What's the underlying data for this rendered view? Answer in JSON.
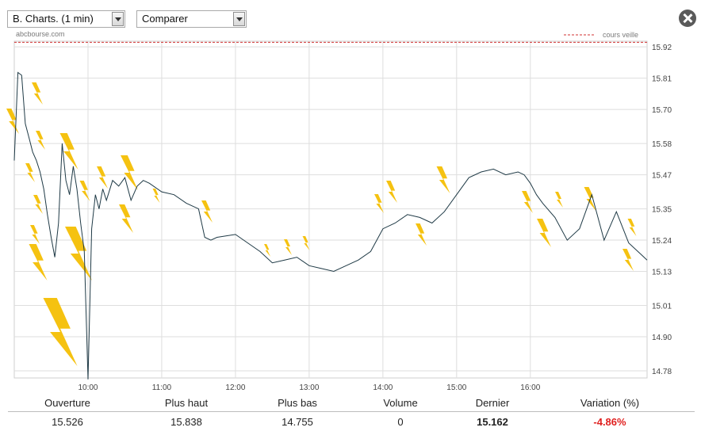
{
  "controls": {
    "period_value": "B. Charts. (1 min)",
    "compare_value": "Comparer"
  },
  "source_label": "abcbourse.com",
  "colors": {
    "price_line": "#1f3a46",
    "ref_line": "#d03030",
    "grid": "#dedede",
    "lightning": "#f5c211",
    "negative": "#e0201f"
  },
  "stats": {
    "headers": [
      "Ouverture",
      "Plus haut",
      "Plus bas",
      "Volume",
      "Dernier",
      "Variation (%)"
    ],
    "values": [
      "15.526",
      "15.838",
      "14.755",
      "0",
      "15.162",
      "-4.86%"
    ]
  },
  "chart_data": {
    "type": "line",
    "x_ticks": [
      "10:00",
      "11:00",
      "12:00",
      "13:00",
      "14:00",
      "15:00",
      "16:00"
    ],
    "y_ticks": [
      15.92,
      15.81,
      15.7,
      15.58,
      15.47,
      15.35,
      15.24,
      15.13,
      15.01,
      14.9,
      14.78
    ],
    "ylim": [
      14.755,
      15.94
    ],
    "xlim": [
      "09:00",
      "17:35"
    ],
    "grid": true,
    "reference_line": {
      "label": "cours veille",
      "value": 15.936
    },
    "series": [
      {
        "x": [
          "09:00",
          "09:03",
          "09:06",
          "09:09",
          "09:12",
          "09:15",
          "09:18",
          "09:21",
          "09:24",
          "09:27",
          "09:30",
          "09:33",
          "09:36",
          "09:39",
          "09:42",
          "09:45",
          "09:48",
          "09:51",
          "09:54",
          "09:57",
          "10:00",
          "10:03",
          "10:06",
          "10:09",
          "10:12",
          "10:15",
          "10:20",
          "10:25",
          "10:30",
          "10:35",
          "10:40",
          "10:45",
          "10:50",
          "11:00",
          "11:10",
          "11:20",
          "11:30",
          "11:35",
          "11:40",
          "11:45",
          "12:00",
          "12:10",
          "12:20",
          "12:30",
          "12:40",
          "12:50",
          "13:00",
          "13:10",
          "13:20",
          "13:30",
          "13:40",
          "13:50",
          "14:00",
          "14:10",
          "14:20",
          "14:30",
          "14:40",
          "14:50",
          "15:00",
          "15:10",
          "15:20",
          "15:30",
          "15:40",
          "15:50",
          "15:55",
          "16:00",
          "16:05",
          "16:10",
          "16:20",
          "16:30",
          "16:40",
          "16:50",
          "17:00",
          "17:10",
          "17:20",
          "17:30",
          "17:35"
        ],
        "values": [
          15.52,
          15.83,
          15.82,
          15.65,
          15.6,
          15.55,
          15.52,
          15.48,
          15.42,
          15.33,
          15.25,
          15.18,
          15.3,
          15.58,
          15.45,
          15.4,
          15.5,
          15.42,
          15.3,
          15.2,
          14.75,
          15.28,
          15.4,
          15.35,
          15.42,
          15.38,
          15.45,
          15.43,
          15.46,
          15.38,
          15.43,
          15.45,
          15.44,
          15.41,
          15.4,
          15.37,
          15.35,
          15.25,
          15.24,
          15.25,
          15.26,
          15.23,
          15.2,
          15.16,
          15.17,
          15.18,
          15.15,
          15.14,
          15.13,
          15.15,
          15.17,
          15.2,
          15.28,
          15.3,
          15.33,
          15.32,
          15.3,
          15.34,
          15.4,
          15.46,
          15.48,
          15.49,
          15.47,
          15.48,
          15.47,
          15.44,
          15.4,
          15.37,
          15.32,
          15.24,
          15.28,
          15.4,
          15.24,
          15.34,
          15.23,
          15.19,
          15.17
        ]
      }
    ]
  }
}
